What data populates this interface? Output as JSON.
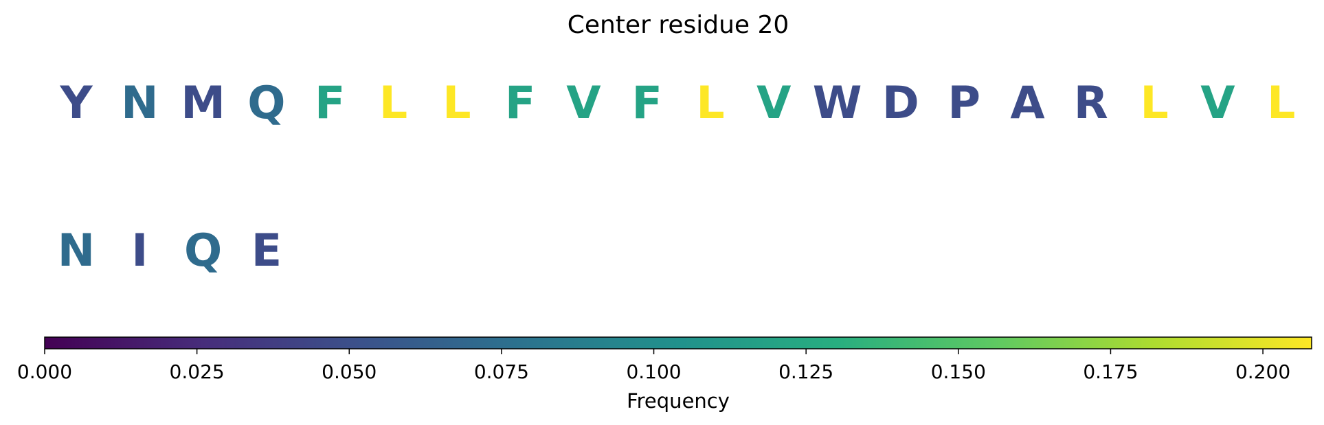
{
  "chart_data": {
    "type": "table",
    "title": "Center residue 20",
    "residues": [
      {
        "letter": "Y",
        "frequency": 0.048
      },
      {
        "letter": "N",
        "frequency": 0.072
      },
      {
        "letter": "M",
        "frequency": 0.048
      },
      {
        "letter": "Q",
        "frequency": 0.072
      },
      {
        "letter": "F",
        "frequency": 0.12
      },
      {
        "letter": "L",
        "frequency": 0.208
      },
      {
        "letter": "L",
        "frequency": 0.208
      },
      {
        "letter": "F",
        "frequency": 0.12
      },
      {
        "letter": "V",
        "frequency": 0.12
      },
      {
        "letter": "F",
        "frequency": 0.12
      },
      {
        "letter": "L",
        "frequency": 0.208
      },
      {
        "letter": "V",
        "frequency": 0.12
      },
      {
        "letter": "W",
        "frequency": 0.048
      },
      {
        "letter": "D",
        "frequency": 0.048
      },
      {
        "letter": "P",
        "frequency": 0.048
      },
      {
        "letter": "A",
        "frequency": 0.048
      },
      {
        "letter": "R",
        "frequency": 0.048
      },
      {
        "letter": "L",
        "frequency": 0.208
      },
      {
        "letter": "V",
        "frequency": 0.12
      },
      {
        "letter": "L",
        "frequency": 0.208
      },
      {
        "letter": "N",
        "frequency": 0.072
      },
      {
        "letter": "I",
        "frequency": 0.048
      },
      {
        "letter": "Q",
        "frequency": 0.072
      },
      {
        "letter": "E",
        "frequency": 0.048
      }
    ],
    "colorbar": {
      "label": "Frequency",
      "range": [
        0,
        0.208
      ],
      "ticks": [
        0.0,
        0.025,
        0.05,
        0.075,
        0.1,
        0.125,
        0.15,
        0.175,
        0.2
      ],
      "tick_labels": [
        "0.000",
        "0.025",
        "0.050",
        "0.075",
        "0.100",
        "0.125",
        "0.150",
        "0.175",
        "0.200"
      ],
      "colormap": "viridis",
      "orientation": "horizontal"
    }
  }
}
